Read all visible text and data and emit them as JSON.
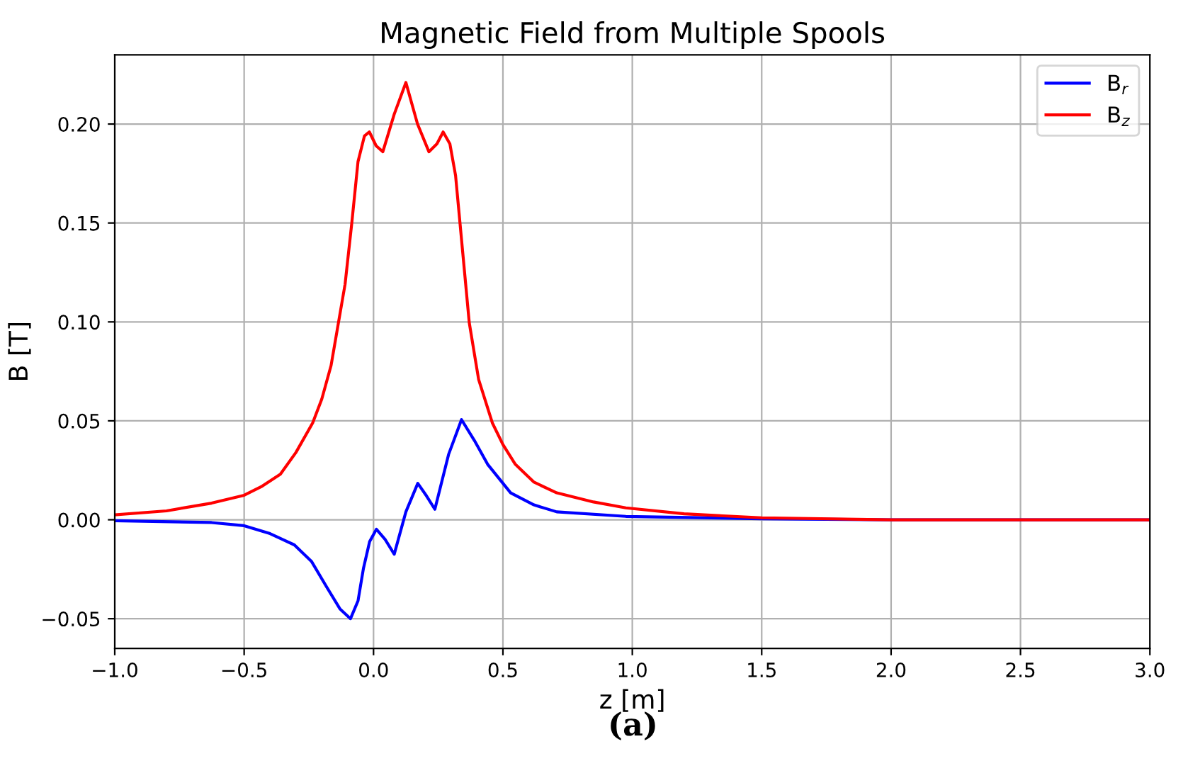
{
  "chart_data": {
    "type": "line",
    "title": "Magnetic Field from Multiple Spools",
    "xlabel": "z [m]",
    "ylabel": "B [T]",
    "xlim": [
      -1.0,
      3.0
    ],
    "xticks": [
      {
        "value": -1.0,
        "label": "−1.0"
      },
      {
        "value": -0.5,
        "label": "−0.5"
      },
      {
        "value": 0.0,
        "label": "0.0"
      },
      {
        "value": 0.5,
        "label": "0.5"
      },
      {
        "value": 1.0,
        "label": "1.0"
      },
      {
        "value": 1.5,
        "label": "1.5"
      },
      {
        "value": 2.0,
        "label": "2.0"
      },
      {
        "value": 2.5,
        "label": "2.5"
      },
      {
        "value": 3.0,
        "label": "3.0"
      }
    ],
    "ylim": [
      -0.065,
      0.235
    ],
    "yticks": [
      {
        "value": -0.05,
        "label": "−0.05"
      },
      {
        "value": 0.0,
        "label": "0.00"
      },
      {
        "value": 0.05,
        "label": "0.05"
      },
      {
        "value": 0.1,
        "label": "0.10"
      },
      {
        "value": 0.15,
        "label": "0.15"
      },
      {
        "value": 0.2,
        "label": "0.20"
      }
    ],
    "grid": true,
    "legend": "top right",
    "line_style": "solid",
    "marker": "none",
    "series": [
      {
        "name": "B$_{r}$",
        "color": "#0000ff",
        "x": [
          -1.0,
          -0.626,
          -0.5,
          -0.4,
          -0.306,
          -0.24,
          -0.181,
          -0.13,
          -0.089,
          -0.06,
          -0.039,
          -0.015,
          0.011,
          0.045,
          0.08,
          0.125,
          0.171,
          0.205,
          0.237,
          0.29,
          0.34,
          0.39,
          0.441,
          0.53,
          0.62,
          0.708,
          0.975,
          1.5,
          2.0,
          3.0
        ],
        "values": [
          -0.0005,
          -0.0014,
          -0.003,
          -0.007,
          -0.0127,
          -0.021,
          -0.034,
          -0.045,
          -0.05,
          -0.041,
          -0.0246,
          -0.011,
          -0.0048,
          -0.01,
          -0.0174,
          0.004,
          0.0184,
          0.012,
          0.0053,
          0.033,
          0.0506,
          0.04,
          0.028,
          0.0136,
          0.0075,
          0.004,
          0.0017,
          0.0005,
          0.0,
          0.0
        ]
      },
      {
        "name": "B$_{z}$",
        "color": "#ff0000",
        "x": [
          -1.0,
          -0.8,
          -0.626,
          -0.5,
          -0.43,
          -0.36,
          -0.3,
          -0.235,
          -0.2,
          -0.164,
          -0.11,
          -0.084,
          -0.06,
          -0.035,
          -0.016,
          0.01,
          0.036,
          0.08,
          0.125,
          0.17,
          0.214,
          0.245,
          0.269,
          0.295,
          0.317,
          0.37,
          0.406,
          0.459,
          0.5,
          0.548,
          0.62,
          0.708,
          0.85,
          0.975,
          1.2,
          1.5,
          2.0,
          3.0
        ],
        "values": [
          0.0025,
          0.0045,
          0.0084,
          0.0124,
          0.017,
          0.023,
          0.034,
          0.049,
          0.061,
          0.078,
          0.119,
          0.15,
          0.181,
          0.194,
          0.196,
          0.189,
          0.186,
          0.205,
          0.221,
          0.2,
          0.186,
          0.19,
          0.196,
          0.19,
          0.174,
          0.0995,
          0.071,
          0.049,
          0.038,
          0.028,
          0.019,
          0.0136,
          0.009,
          0.006,
          0.003,
          0.001,
          0.0,
          0.0
        ]
      }
    ],
    "annotations": [
      "(a)"
    ]
  }
}
